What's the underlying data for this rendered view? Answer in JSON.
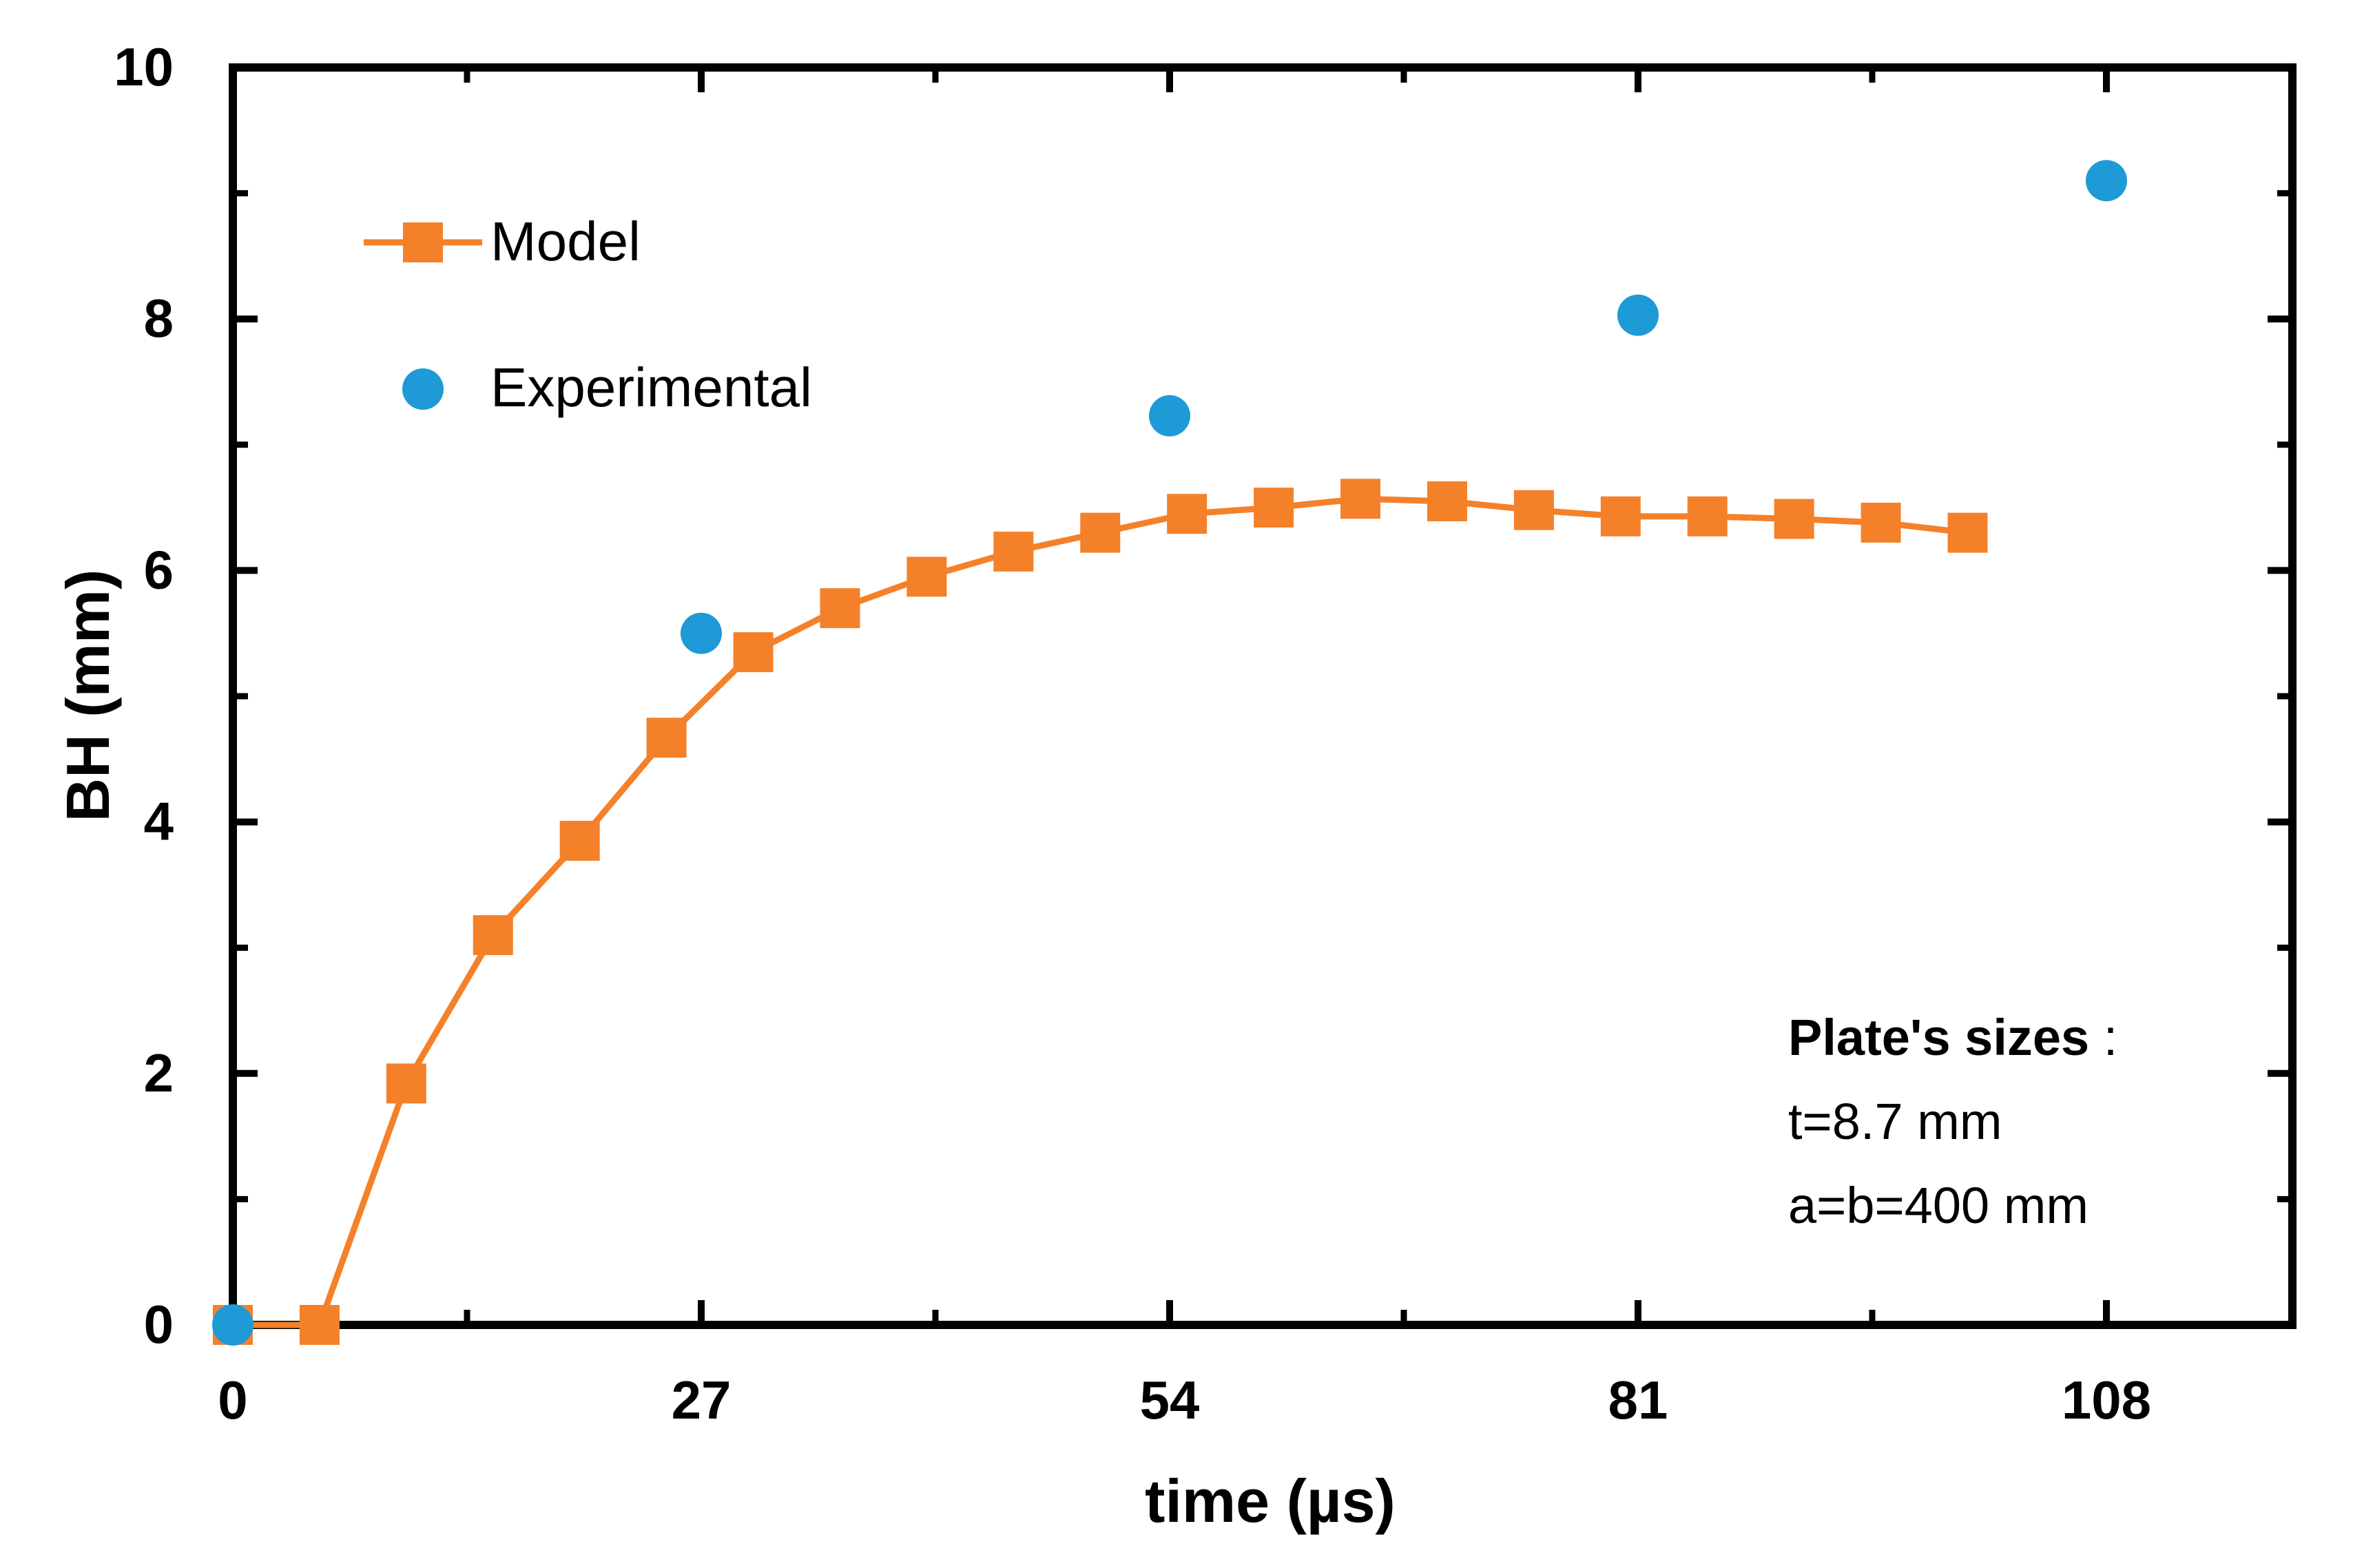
{
  "chart_data": {
    "type": "line",
    "title": "",
    "xlabel": "time (µs)",
    "ylabel": "BH (mm)",
    "xlim": [
      0,
      116
    ],
    "ylim": [
      0,
      10
    ],
    "xticks": [
      0,
      27,
      54,
      81,
      108
    ],
    "xtick_labels": [
      "0",
      "27",
      "54",
      "81",
      "108"
    ],
    "yticks": [
      0,
      2,
      4,
      6,
      8,
      10
    ],
    "ytick_labels": [
      "0",
      "2",
      "4",
      "6",
      "8",
      "10"
    ],
    "grid": false,
    "legend_position": "top-left",
    "series": [
      {
        "name": "Model",
        "style": "line-square",
        "color": "#F4812A",
        "x": [
          0,
          5,
          10,
          15,
          20,
          25,
          30,
          35,
          40,
          45,
          50,
          55,
          60,
          65,
          70,
          75,
          80,
          85,
          90,
          95,
          100
        ],
        "y": [
          0,
          0,
          1.92,
          3.1,
          3.85,
          4.67,
          5.35,
          5.7,
          5.95,
          6.15,
          6.3,
          6.45,
          6.5,
          6.57,
          6.55,
          6.48,
          6.43,
          6.43,
          6.41,
          6.38,
          6.3
        ]
      },
      {
        "name": "Experimental",
        "style": "markers-circle",
        "color": "#1E9AD6",
        "x": [
          0,
          27,
          54,
          81,
          108
        ],
        "y": [
          0,
          5.5,
          7.23,
          8.03,
          9.1
        ]
      }
    ],
    "annotation": {
      "heading": "Plate's sizes",
      "heading_suffix": " :",
      "lines": [
        "t=8.7 mm",
        "a=b=400 mm"
      ]
    }
  }
}
